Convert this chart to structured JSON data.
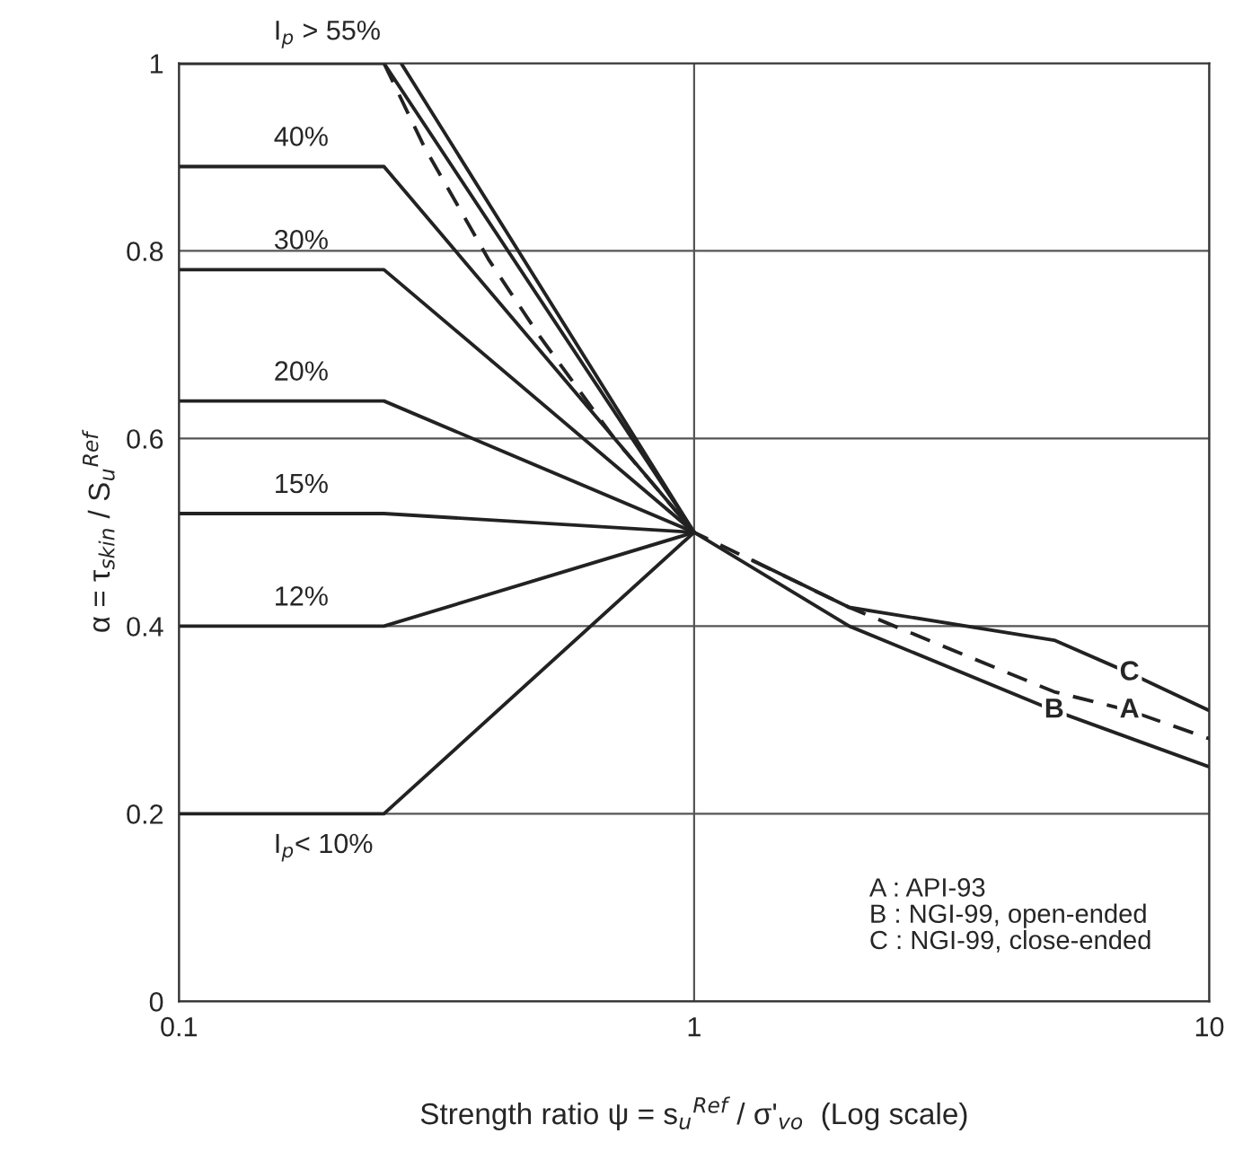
{
  "chart_data": {
    "type": "line",
    "xlabel": "Strength ratio ψ = s$_{u}$$^{Ref}$ / σ'$_{vo}$  (Log scale)",
    "ylabel": "α = τ$_{skin}$ / S$_{u}$$^{Ref}$",
    "log": "x",
    "xlim": [
      0.1,
      10
    ],
    "xticks": [
      0.1,
      1,
      10
    ],
    "ylim": [
      0,
      1
    ],
    "yticks": [
      0,
      0.2,
      0.4,
      0.6,
      0.8,
      1
    ],
    "grid": true,
    "marker": "none",
    "line_style": "solid",
    "series": [
      {
        "name": "I$_{p}$ > 55%",
        "color": "#222222",
        "x": [
          0.1,
          0.25,
          1
        ],
        "values": [
          1,
          1,
          0.5
        ]
      },
      {
        "name": "40%",
        "color": "#222222",
        "x": [
          0.1,
          0.25,
          1
        ],
        "values": [
          0.89,
          0.89,
          0.5
        ]
      },
      {
        "name": "30%",
        "color": "#222222",
        "x": [
          0.1,
          0.25,
          1
        ],
        "values": [
          0.78,
          0.78,
          0.5
        ]
      },
      {
        "name": "20%",
        "color": "#222222",
        "x": [
          0.1,
          0.25,
          1
        ],
        "values": [
          0.64,
          0.64,
          0.5
        ]
      },
      {
        "name": "15%",
        "color": "#222222",
        "x": [
          0.1,
          0.25,
          1
        ],
        "values": [
          0.52,
          0.52,
          0.5
        ]
      },
      {
        "name": "12%",
        "color": "#222222",
        "x": [
          0.1,
          0.25,
          1
        ],
        "values": [
          0.4,
          0.4,
          0.5
        ]
      },
      {
        "name": "I$_{p}$< 10%",
        "color": "#222222",
        "x": [
          0.1,
          0.25,
          1
        ],
        "values": [
          0.2,
          0.2,
          0.5
        ]
      },
      {
        "name": "A",
        "color": "#222222",
        "line_style": "dashed",
        "x": [
          0.25,
          0.3,
          0.4,
          0.5,
          0.7,
          1,
          2,
          3,
          5,
          7,
          10
        ],
        "values": [
          1,
          0.91,
          0.79,
          0.71,
          0.6,
          0.5,
          0.42,
          0.38,
          0.33,
          0.31,
          0.28
        ]
      },
      {
        "name": "B",
        "color": "#222222",
        "x": [
          0.27,
          1,
          2,
          5,
          10
        ],
        "values": [
          1,
          0.5,
          0.4,
          0.31,
          0.25
        ]
      },
      {
        "name": "C",
        "color": "#222222",
        "x": [
          1.3,
          2,
          5,
          7,
          10
        ],
        "values": [
          0.47,
          0.42,
          0.385,
          0.35,
          0.31
        ]
      }
    ],
    "annotations": [
      "A : API-93\nB : NGI-99, open-ended\nC : NGI-99, close-ended"
    ]
  }
}
